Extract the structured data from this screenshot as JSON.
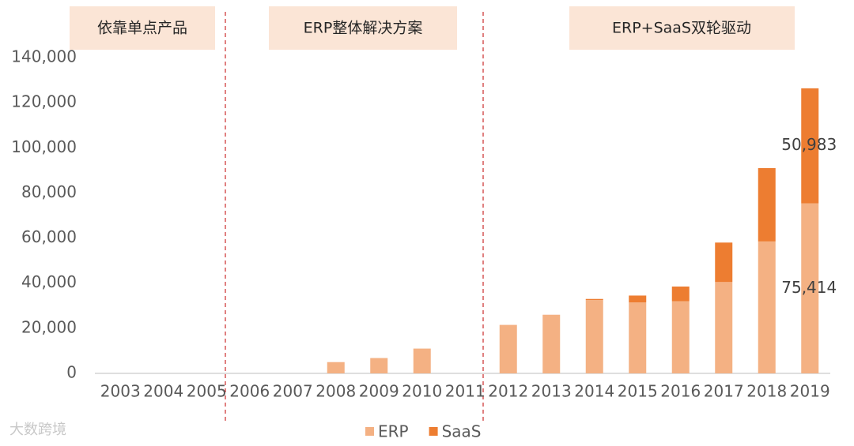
{
  "chart_data": {
    "type": "stacked-bar",
    "annotations": [
      "依靠单点产品",
      "ERP整体解决方案",
      "ERP+SaaS双轮驱动"
    ],
    "categories": [
      "2003",
      "2004",
      "2005",
      "2006",
      "2007",
      "2008",
      "2009",
      "2010",
      "2011",
      "2012",
      "2013",
      "2014",
      "2015",
      "2016",
      "2017",
      "2018",
      "2019"
    ],
    "series": [
      {
        "name": "ERP",
        "color": "#f4b183",
        "values": [
          null,
          null,
          null,
          null,
          null,
          5000,
          6800,
          11000,
          null,
          21500,
          26000,
          32500,
          31500,
          32000,
          40500,
          58500,
          75414
        ],
        "value_labels": [
          null,
          null,
          null,
          null,
          null,
          null,
          null,
          null,
          null,
          null,
          null,
          null,
          null,
          null,
          null,
          null,
          "75,414"
        ]
      },
      {
        "name": "SaaS",
        "color": "#ed7d31",
        "values": [
          null,
          null,
          null,
          null,
          null,
          null,
          null,
          null,
          null,
          null,
          null,
          500,
          3000,
          6500,
          17500,
          32500,
          50983
        ],
        "value_labels": [
          null,
          null,
          null,
          null,
          null,
          null,
          null,
          null,
          null,
          null,
          null,
          null,
          null,
          null,
          null,
          null,
          "50,983"
        ]
      }
    ],
    "ylim": [
      0,
      140000
    ],
    "yticks": [
      0,
      {
        "value": 20000,
        "label": "20,000"
      },
      {
        "value": 40000,
        "label": "40,000"
      },
      {
        "value": 60000,
        "label": "60,000"
      },
      {
        "value": 80000,
        "label": "80,000"
      },
      {
        "value": 100000,
        "label": "100,000"
      },
      {
        "value": 120000,
        "label": "120,000"
      },
      {
        "value": 140000,
        "label": "140,000"
      }
    ],
    "legend": "bottom"
  },
  "watermark": "大数跨境"
}
